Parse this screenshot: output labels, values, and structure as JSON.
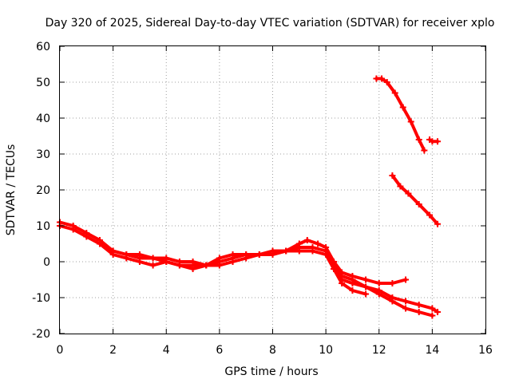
{
  "chart_data": {
    "type": "scatter",
    "title": "Day 320 of 2025, Sidereal Day-to-day VTEC variation (SDTVAR) for receiver xplo",
    "xlabel": "GPS time / hours",
    "ylabel": "SDTVAR / TECUs",
    "xlim": [
      0,
      16
    ],
    "ylim": [
      -20,
      60
    ],
    "xticks": [
      "0",
      "2",
      "4",
      "6",
      "8",
      "10",
      "12",
      "14",
      "16"
    ],
    "yticks": [
      "-20",
      "-10",
      "0",
      "10",
      "20",
      "30",
      "40",
      "50",
      "60"
    ],
    "grid": true,
    "legend": "none",
    "color": "#ff0000",
    "series": [
      {
        "name": "track-a",
        "x": [
          0.0,
          0.5,
          1.0,
          1.5,
          2.0,
          2.5,
          3.0,
          3.5,
          4.0,
          4.5,
          5.0,
          5.5,
          6.0,
          6.5,
          7.0,
          7.5,
          8.0,
          8.5,
          9.0,
          9.3,
          9.7,
          10.0,
          10.3,
          10.6,
          11.0,
          11.5,
          12.0,
          12.5,
          13.0
        ],
        "y": [
          11,
          10,
          8,
          6,
          3,
          2,
          1,
          1,
          1,
          0,
          0,
          -1,
          0,
          1,
          2,
          2,
          3,
          3,
          5,
          6,
          5,
          4,
          0,
          -3,
          -4,
          -5,
          -6,
          -6,
          -5
        ]
      },
      {
        "name": "track-b",
        "x": [
          0.0,
          0.5,
          1.0,
          1.5,
          2.0,
          2.5,
          3.0,
          3.5,
          4.0,
          4.5,
          5.0,
          5.5,
          6.0,
          6.5,
          7.0,
          7.5,
          8.0,
          8.5,
          9.0,
          9.5,
          10.0,
          10.3,
          10.6,
          11.0,
          11.5,
          12.0,
          12.5,
          13.0,
          13.5,
          14.0,
          14.2
        ],
        "y": [
          10,
          9,
          7,
          5,
          2,
          1,
          0,
          -1,
          0,
          -1,
          -1,
          -1,
          -1,
          0,
          1,
          2,
          2,
          3,
          3,
          3,
          2,
          -2,
          -5,
          -6,
          -7,
          -8,
          -10,
          -11,
          -12,
          -13,
          -14
        ]
      },
      {
        "name": "track-c",
        "x": [
          2.0,
          2.5,
          3.0,
          3.5,
          4.0,
          4.5,
          5.0,
          5.5,
          6.0,
          6.5,
          7.0,
          7.5,
          8.0,
          8.5,
          9.0,
          9.5,
          10.0,
          10.3,
          10.6,
          11.0,
          11.5,
          12.0,
          12.5,
          13.0,
          13.5,
          14.0
        ],
        "y": [
          3,
          2,
          2,
          1,
          0,
          -1,
          -2,
          -1,
          1,
          2,
          2,
          2,
          2,
          3,
          4,
          4,
          3,
          -1,
          -4,
          -5,
          -7,
          -9,
          -11,
          -13,
          -14,
          -15
        ]
      },
      {
        "name": "track-d",
        "x": [
          10.3,
          10.6,
          11.0,
          11.5
        ],
        "y": [
          -2,
          -6,
          -8,
          -9
        ]
      },
      {
        "name": "track-e",
        "x": [
          11.9,
          12.1,
          12.3,
          12.6,
          12.9,
          13.2,
          13.5,
          13.7
        ],
        "y": [
          51,
          51,
          50,
          47,
          43,
          39,
          34,
          31
        ]
      },
      {
        "name": "track-f",
        "x": [
          12.5,
          12.8,
          13.1,
          13.5,
          13.9,
          14.2
        ],
        "y": [
          24,
          21,
          19,
          16,
          13,
          10.5
        ]
      },
      {
        "name": "track-g",
        "x": [
          13.9,
          14.0,
          14.2
        ],
        "y": [
          34,
          33.5,
          33.5
        ]
      }
    ]
  }
}
